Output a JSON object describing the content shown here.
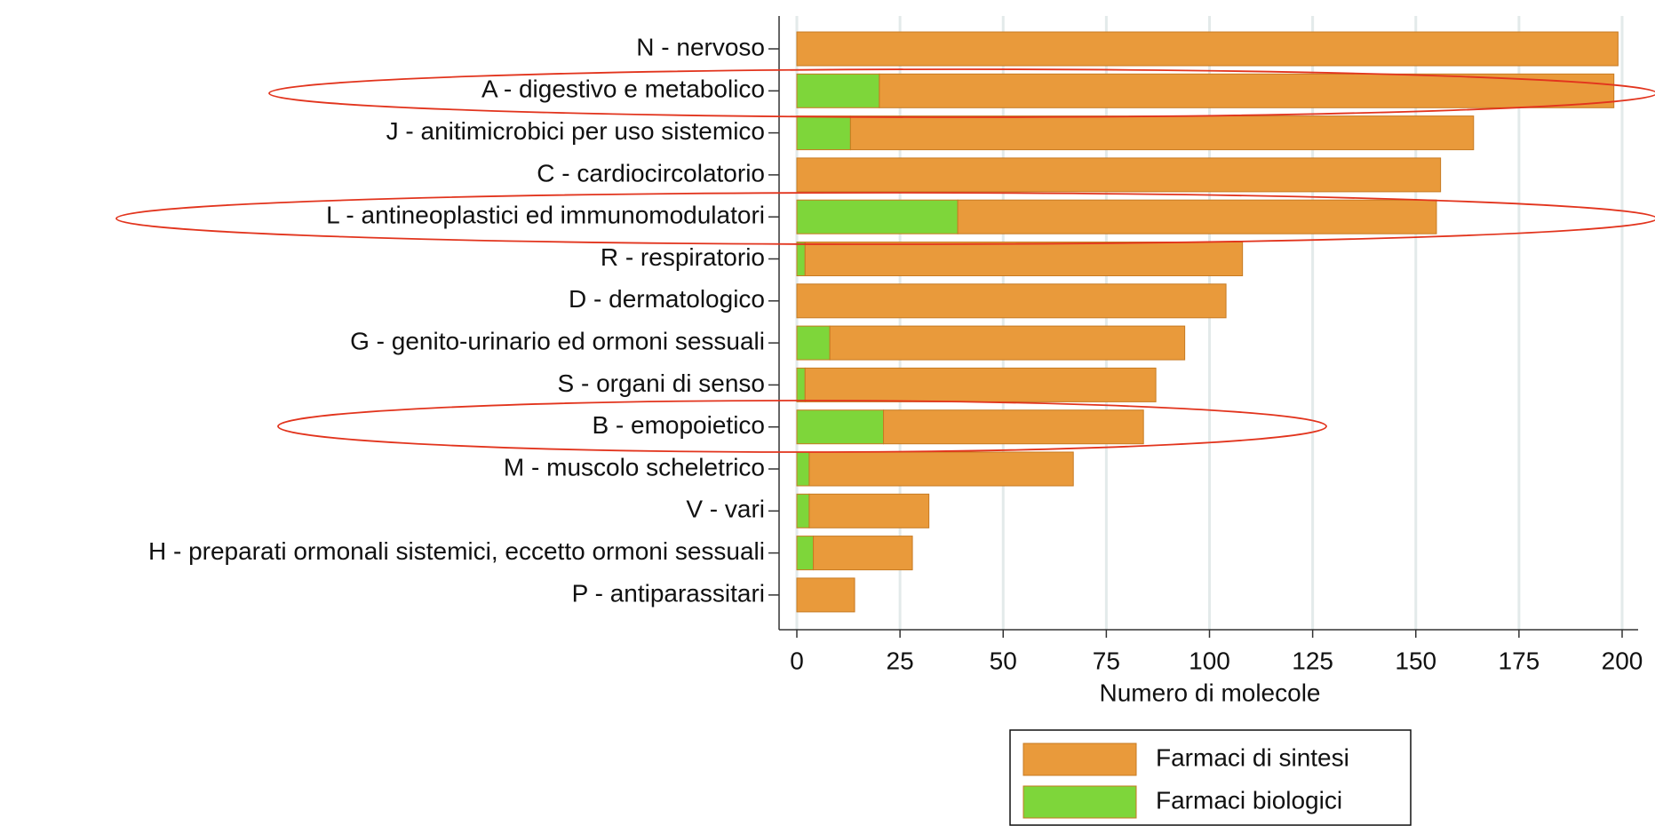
{
  "chart_data": {
    "type": "stacked-barh",
    "x_label": "Numero di molecole",
    "categories": [
      "N - nervoso",
      "A - digestivo e metabolico",
      "J - anitimicrobici per uso sistemico",
      "C - cardiocircolatorio",
      "L - antineoplastici ed immunomodulatori",
      "R - respiratorio",
      "D - dermatologico",
      "G - genito-urinario ed ormoni sessuali",
      "S - organi di senso",
      "B - emopoietico",
      "M - muscolo scheletrico",
      "V - vari",
      "H - preparati ormonali sistemici, eccetto ormoni sessuali",
      "P - antiparassitari"
    ],
    "series": [
      {
        "name": "Farmaci di sintesi",
        "color": "#e99a3b",
        "values": [
          199,
          178,
          151,
          156,
          116,
          106,
          104,
          86,
          85,
          63,
          64,
          29,
          24,
          14
        ]
      },
      {
        "name": "Farmaci biologici",
        "color": "#7ed63a",
        "values": [
          0,
          20,
          13,
          0,
          39,
          2,
          0,
          8,
          2,
          21,
          3,
          3,
          4,
          0
        ]
      }
    ],
    "xlim": [
      0,
      200
    ],
    "xticks": [
      0,
      25,
      50,
      75,
      100,
      125,
      150,
      175,
      200
    ],
    "grid": true
  }
}
